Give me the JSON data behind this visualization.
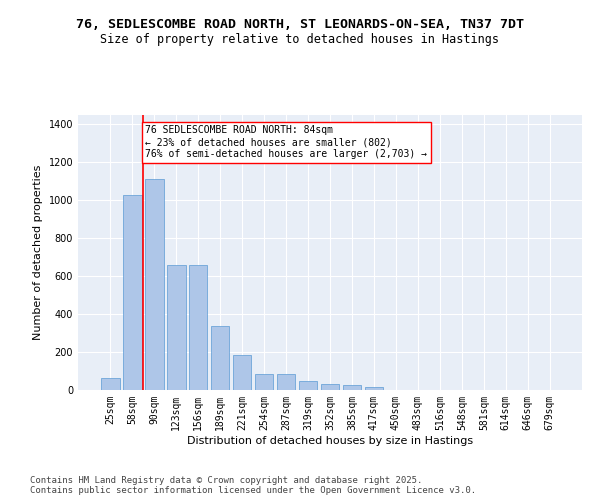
{
  "title1": "76, SEDLESCOMBE ROAD NORTH, ST LEONARDS-ON-SEA, TN37 7DT",
  "title2": "Size of property relative to detached houses in Hastings",
  "xlabel": "Distribution of detached houses by size in Hastings",
  "ylabel": "Number of detached properties",
  "categories": [
    "25sqm",
    "58sqm",
    "90sqm",
    "123sqm",
    "156sqm",
    "189sqm",
    "221sqm",
    "254sqm",
    "287sqm",
    "319sqm",
    "352sqm",
    "385sqm",
    "417sqm",
    "450sqm",
    "483sqm",
    "516sqm",
    "548sqm",
    "581sqm",
    "614sqm",
    "646sqm",
    "679sqm"
  ],
  "values": [
    62,
    1028,
    1112,
    660,
    660,
    335,
    185,
    85,
    85,
    45,
    30,
    25,
    17,
    0,
    0,
    0,
    0,
    0,
    0,
    0,
    0
  ],
  "bar_color": "#aec6e8",
  "bar_edge_color": "#5b9bd5",
  "vline_x_index": 2,
  "vline_color": "red",
  "annotation_text": "76 SEDLESCOMBE ROAD NORTH: 84sqm\n← 23% of detached houses are smaller (802)\n76% of semi-detached houses are larger (2,703) →",
  "annotation_box_color": "white",
  "annotation_box_edge_color": "red",
  "ylim": [
    0,
    1450
  ],
  "yticks": [
    0,
    200,
    400,
    600,
    800,
    1000,
    1200,
    1400
  ],
  "background_color": "#e8eef7",
  "grid_color": "white",
  "footer_text": "Contains HM Land Registry data © Crown copyright and database right 2025.\nContains public sector information licensed under the Open Government Licence v3.0.",
  "title_fontsize": 9.5,
  "subtitle_fontsize": 8.5,
  "axis_label_fontsize": 8,
  "tick_fontsize": 7,
  "annotation_fontsize": 7,
  "footer_fontsize": 6.5
}
